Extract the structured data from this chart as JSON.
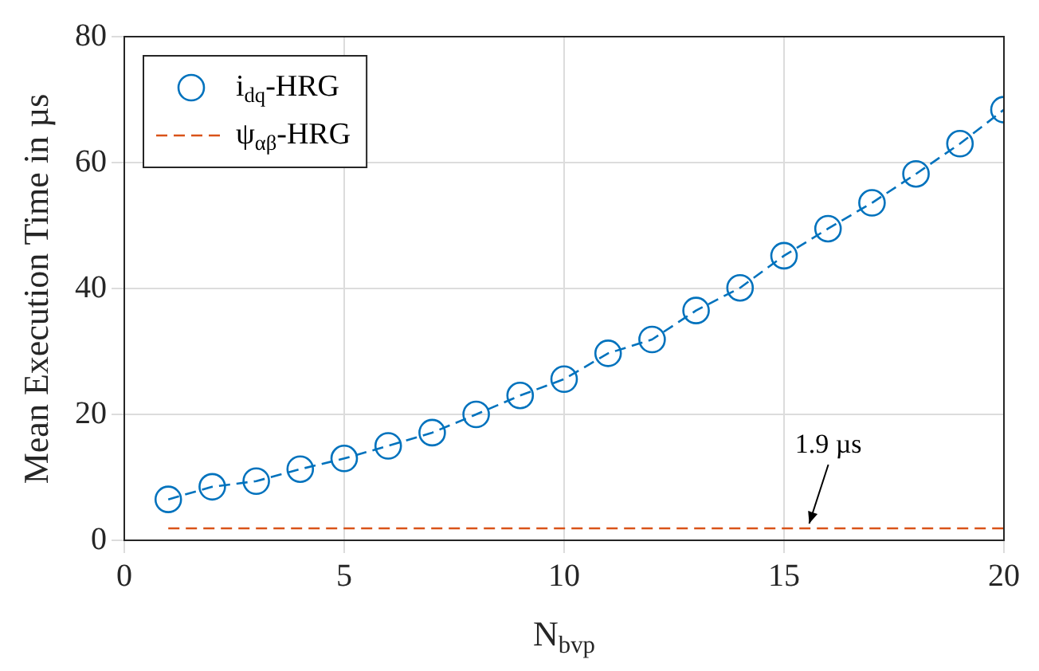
{
  "chart_data": {
    "type": "line",
    "xlabel": "N$_{bvp}$",
    "ylabel": "Mean Execution Time in µs",
    "x": [
      1,
      2,
      3,
      4,
      5,
      6,
      7,
      8,
      9,
      10,
      11,
      12,
      13,
      14,
      15,
      16,
      17,
      18,
      19,
      20
    ],
    "series": [
      {
        "name": "i$_{dq}$-HRG",
        "color": "#0072bd",
        "marker": "circle",
        "line_style": "dashed",
        "values": [
          6.5,
          8.5,
          9.4,
          11.3,
          13,
          15,
          17.1,
          20,
          23,
          25.6,
          29.7,
          31.9,
          36.5,
          40.1,
          45.2,
          49.5,
          53.6,
          58.2,
          63,
          68.4
        ]
      },
      {
        "name": "ψ$_{αβ}$-HRG",
        "color": "#d95319",
        "marker": "none",
        "line_style": "dashed",
        "values": [
          1.9,
          1.9,
          1.9,
          1.9,
          1.9,
          1.9,
          1.9,
          1.9,
          1.9,
          1.9,
          1.9,
          1.9,
          1.9,
          1.9,
          1.9,
          1.9,
          1.9,
          1.9,
          1.9,
          1.9
        ]
      }
    ],
    "xlim": [
      0,
      20
    ],
    "xticks": [
      0,
      5,
      10,
      15,
      20
    ],
    "ylim": [
      0,
      80
    ],
    "yticks": [
      0,
      20,
      40,
      60,
      80
    ],
    "grid": true,
    "legend": "top left",
    "annotations": [
      {
        "text": "1.9 µs",
        "x": 15.5,
        "y": 1.9
      }
    ]
  }
}
